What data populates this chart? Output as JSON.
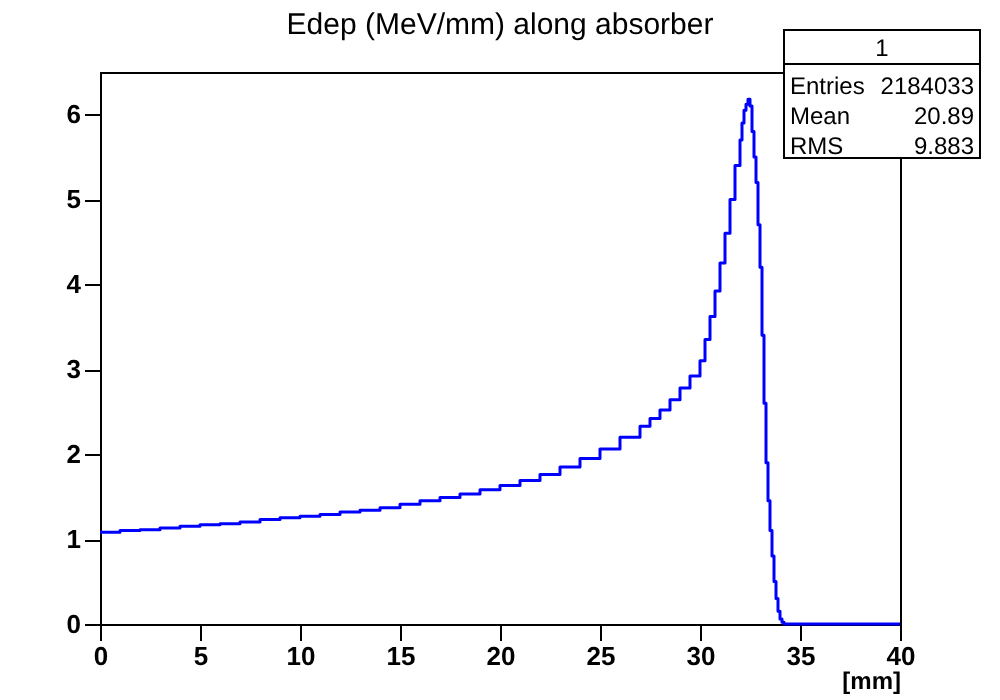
{
  "chart_data": {
    "type": "histogram",
    "title": "Edep (MeV/mm) along absorber",
    "xlabel": "[mm]",
    "annotations": [
      "1",
      "Entries 2184033",
      "Mean 20.89",
      "RMS 9.883"
    ],
    "color": "#0000ff",
    "bins": [
      0,
      1,
      2,
      3,
      4,
      5,
      6,
      7,
      8,
      9,
      10,
      11,
      12,
      13,
      14,
      15,
      16,
      17,
      18,
      19,
      20,
      21,
      22,
      23,
      24,
      25,
      26,
      27,
      27.5,
      28,
      28.5,
      29,
      29.5,
      30,
      30.25,
      30.5,
      30.75,
      31,
      31.25,
      31.5,
      31.75,
      32,
      32.1,
      32.2,
      32.3,
      32.4,
      32.5,
      32.6,
      32.7,
      32.8,
      32.9,
      33.0,
      33.1,
      33.2,
      33.3,
      33.4,
      33.5,
      33.6,
      33.7,
      33.8,
      33.9,
      34.0,
      34.1,
      34.2,
      40
    ],
    "values": [
      1.08,
      1.1,
      1.11,
      1.13,
      1.15,
      1.17,
      1.18,
      1.2,
      1.23,
      1.25,
      1.27,
      1.29,
      1.32,
      1.34,
      1.37,
      1.41,
      1.45,
      1.49,
      1.53,
      1.58,
      1.63,
      1.69,
      1.76,
      1.85,
      1.95,
      2.06,
      2.2,
      2.33,
      2.42,
      2.52,
      2.64,
      2.78,
      2.92,
      3.1,
      3.35,
      3.62,
      3.92,
      4.25,
      4.6,
      5.0,
      5.4,
      5.7,
      5.9,
      6.05,
      6.12,
      6.18,
      6.1,
      5.8,
      5.5,
      5.2,
      4.7,
      4.2,
      3.4,
      2.6,
      1.9,
      1.45,
      1.1,
      0.8,
      0.5,
      0.3,
      0.15,
      0.06,
      0.02,
      0
    ],
    "xlim": [
      0,
      40
    ],
    "ylim": [
      0,
      6.5
    ],
    "xticks": [
      0,
      5,
      10,
      15,
      20,
      25,
      30,
      35,
      40
    ],
    "yticks": [
      0,
      1,
      2,
      3,
      4,
      5,
      6
    ],
    "grid": false
  }
}
